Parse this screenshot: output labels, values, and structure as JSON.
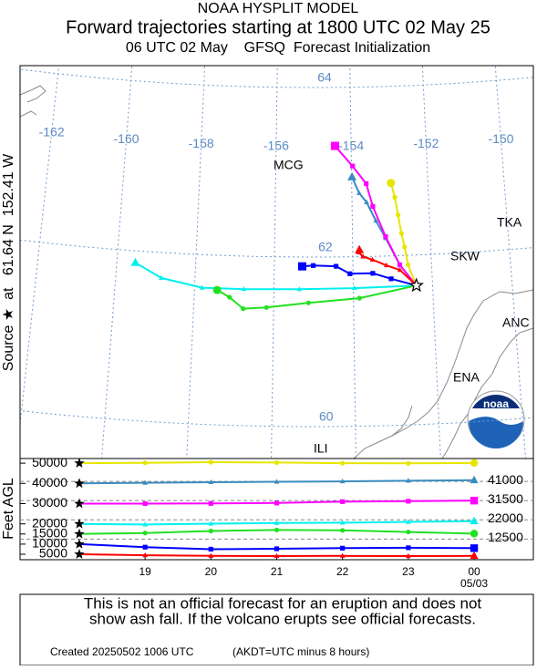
{
  "header": {
    "title": "NOAA HYSPLIT MODEL",
    "subtitle": "Forward trajectories starting at 1800 UTC 02 May 25",
    "initialization": "06 UTC 02 May    GFSQ  Forecast Initialization"
  },
  "source_label": "Source ★  at   61.64 N  152.41 W",
  "map": {
    "lon_ticks": [
      -162,
      -160,
      -158,
      -156,
      -154,
      -152,
      -150
    ],
    "lat_ticks": [
      60,
      62,
      64
    ],
    "places": [
      "MCG",
      "TKA",
      "SKW",
      "ANC",
      "ENA",
      "ILI"
    ],
    "logo": "noaa"
  },
  "chart_data": {
    "type": "line",
    "y_label": "Feet AGL",
    "x": [
      18,
      19,
      20,
      21,
      22,
      23,
      24
    ],
    "xlim": [
      17.1,
      24.9
    ],
    "xticks": [
      19,
      20,
      21,
      22,
      23,
      {
        "value": 24,
        "label": "00"
      }
    ],
    "x_sublabel": "05/03",
    "ylim": [
      2300,
      52300
    ],
    "yticks": [
      5000,
      10000,
      15000,
      20000,
      30000,
      40000,
      50000
    ],
    "y2ticks": [
      12500,
      22000,
      31500,
      41000
    ],
    "series": [
      {
        "color": "#e6e600",
        "marker": "circle",
        "values": [
          50000,
          50200,
          50500,
          50300,
          50000,
          49900,
          50100
        ],
        "lat": [
          61.64,
          61.89,
          62.1,
          62.26,
          62.48,
          62.69,
          62.86
        ],
        "lon": [
          -152.41,
          -152.6,
          -152.67,
          -152.74,
          -152.81,
          -152.88,
          -152.97
        ]
      },
      {
        "color": "#3a8cc0",
        "marker": "triangle",
        "values": [
          40000,
          40300,
          40600,
          40800,
          41000,
          41300,
          41600
        ],
        "lat": [
          61.64,
          61.89,
          62.21,
          62.42,
          62.64,
          62.75,
          62.94
        ],
        "lon": [
          -152.41,
          -152.81,
          -153.15,
          -153.39,
          -153.62,
          -153.81,
          -153.99
        ]
      },
      {
        "color": "#ff00ff",
        "marker": "square",
        "values": [
          30000,
          30000,
          30100,
          30300,
          31000,
          31200,
          31500
        ],
        "lat": [
          61.64,
          61.89,
          62.23,
          62.59,
          62.86,
          63.07,
          63.31
        ],
        "lon": [
          -152.41,
          -152.81,
          -153.15,
          -153.46,
          -153.62,
          -153.97,
          -154.43
        ]
      },
      {
        "color": "#00f0f0",
        "marker": "triangle",
        "values": [
          20000,
          19700,
          20100,
          20400,
          20600,
          21000,
          21300
        ],
        "lat": [
          61.64,
          61.63,
          61.62,
          61.61,
          61.61,
          61.7,
          61.86
        ],
        "lon": [
          -152.41,
          -153.97,
          -155.36,
          -156.76,
          -157.81,
          -158.85,
          -159.53
        ]
      },
      {
        "color": "#22e022",
        "marker": "circle",
        "values": [
          15000,
          15500,
          16500,
          17000,
          16800,
          16000,
          15200
        ],
        "lat": [
          61.64,
          61.51,
          61.46,
          61.4,
          61.38,
          61.51,
          61.59
        ],
        "lon": [
          -152.41,
          -153.85,
          -155.13,
          -156.18,
          -156.76,
          -157.11,
          -157.43
        ]
      },
      {
        "color": "#0000ff",
        "marker": "square",
        "values": [
          10000,
          8500,
          7500,
          7700,
          8000,
          8200,
          8000
        ],
        "lat": [
          61.64,
          61.73,
          61.8,
          61.8,
          61.89,
          61.9,
          61.89
        ],
        "lon": [
          -152.41,
          -153.04,
          -153.5,
          -154.08,
          -154.43,
          -155.01,
          -155.29
        ]
      },
      {
        "color": "#ff0000",
        "marker": "triangle",
        "values": [
          5000,
          4500,
          4200,
          4100,
          4200,
          4100,
          4200
        ],
        "lat": [
          61.64,
          61.83,
          61.89,
          61.96,
          62.0,
          62.05,
          62.08
        ],
        "lon": [
          -152.41,
          -152.81,
          -153.15,
          -153.5,
          -153.74,
          -153.85,
          -153.83
        ]
      }
    ]
  },
  "footer": {
    "disclaimer_line1": "This is not an official forecast for an eruption and does not",
    "disclaimer_line2": "show ash fall. If the volcano erupts see official forecasts.",
    "created": "Created 20250502 1006 UTC",
    "timezone": "(AKDT=UTC minus 8 hours)"
  }
}
